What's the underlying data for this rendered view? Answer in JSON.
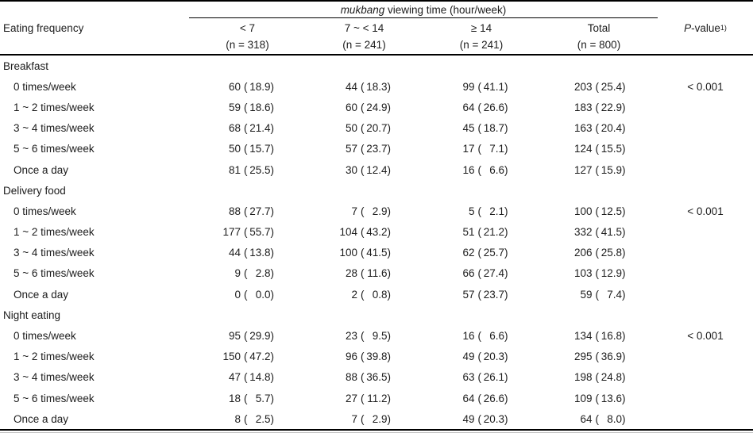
{
  "table": {
    "col1_header": "Eating frequency",
    "spanner": {
      "title_italic": "mukbang",
      "title_rest": " viewing time (hour/week)"
    },
    "columns": [
      {
        "label": "< 7",
        "n": "(n = 318)"
      },
      {
        "label": "7 ~ < 14",
        "n": "(n = 241)"
      },
      {
        "label": "≥ 14",
        "n": "(n = 241)"
      },
      {
        "label": "Total",
        "n": "(n = 800)"
      }
    ],
    "p_header": {
      "italic": "P",
      "rest": "-value",
      "sup": "1)"
    },
    "format": {
      "open": "(",
      "close": ")"
    },
    "sections": [
      {
        "label": "Breakfast",
        "p_value": "< 0.001",
        "rows": [
          {
            "label": "0 times/week",
            "cells": [
              {
                "n": "60",
                "p": "18.9"
              },
              {
                "n": "44",
                "p": "18.3"
              },
              {
                "n": "99",
                "p": "41.1"
              },
              {
                "n": "203",
                "p": "25.4"
              }
            ]
          },
          {
            "label": "1 ~ 2 times/week",
            "cells": [
              {
                "n": "59",
                "p": "18.6"
              },
              {
                "n": "60",
                "p": "24.9"
              },
              {
                "n": "64",
                "p": "26.6"
              },
              {
                "n": "183",
                "p": "22.9"
              }
            ]
          },
          {
            "label": "3 ~ 4 times/week",
            "cells": [
              {
                "n": "68",
                "p": "21.4"
              },
              {
                "n": "50",
                "p": "20.7"
              },
              {
                "n": "45",
                "p": "18.7"
              },
              {
                "n": "163",
                "p": "20.4"
              }
            ]
          },
          {
            "label": "5 ~ 6 times/week",
            "cells": [
              {
                "n": "50",
                "p": "15.7"
              },
              {
                "n": "57",
                "p": "23.7"
              },
              {
                "n": "17",
                "p": "7.1"
              },
              {
                "n": "124",
                "p": "15.5"
              }
            ]
          },
          {
            "label": "Once a day",
            "cells": [
              {
                "n": "81",
                "p": "25.5"
              },
              {
                "n": "30",
                "p": "12.4"
              },
              {
                "n": "16",
                "p": "6.6"
              },
              {
                "n": "127",
                "p": "15.9"
              }
            ]
          }
        ]
      },
      {
        "label": "Delivery food",
        "p_value": "< 0.001",
        "rows": [
          {
            "label": "0 times/week",
            "cells": [
              {
                "n": "88",
                "p": "27.7"
              },
              {
                "n": "7",
                "p": "2.9"
              },
              {
                "n": "5",
                "p": "2.1"
              },
              {
                "n": "100",
                "p": "12.5"
              }
            ]
          },
          {
            "label": "1 ~ 2 times/week",
            "cells": [
              {
                "n": "177",
                "p": "55.7"
              },
              {
                "n": "104",
                "p": "43.2"
              },
              {
                "n": "51",
                "p": "21.2"
              },
              {
                "n": "332",
                "p": "41.5"
              }
            ]
          },
          {
            "label": "3 ~ 4 times/week",
            "cells": [
              {
                "n": "44",
                "p": "13.8"
              },
              {
                "n": "100",
                "p": "41.5"
              },
              {
                "n": "62",
                "p": "25.7"
              },
              {
                "n": "206",
                "p": "25.8"
              }
            ]
          },
          {
            "label": "5 ~ 6 times/week",
            "cells": [
              {
                "n": "9",
                "p": "2.8"
              },
              {
                "n": "28",
                "p": "11.6"
              },
              {
                "n": "66",
                "p": "27.4"
              },
              {
                "n": "103",
                "p": "12.9"
              }
            ]
          },
          {
            "label": "Once a day",
            "cells": [
              {
                "n": "0",
                "p": "0.0"
              },
              {
                "n": "2",
                "p": "0.8"
              },
              {
                "n": "57",
                "p": "23.7"
              },
              {
                "n": "59",
                "p": "7.4"
              }
            ]
          }
        ]
      },
      {
        "label": "Night eating",
        "p_value": "< 0.001",
        "rows": [
          {
            "label": "0 times/week",
            "cells": [
              {
                "n": "95",
                "p": "29.9"
              },
              {
                "n": "23",
                "p": "9.5"
              },
              {
                "n": "16",
                "p": "6.6"
              },
              {
                "n": "134",
                "p": "16.8"
              }
            ]
          },
          {
            "label": "1 ~ 2 times/week",
            "cells": [
              {
                "n": "150",
                "p": "47.2"
              },
              {
                "n": "96",
                "p": "39.8"
              },
              {
                "n": "49",
                "p": "20.3"
              },
              {
                "n": "295",
                "p": "36.9"
              }
            ]
          },
          {
            "label": "3 ~ 4 times/week",
            "cells": [
              {
                "n": "47",
                "p": "14.8"
              },
              {
                "n": "88",
                "p": "36.5"
              },
              {
                "n": "63",
                "p": "26.1"
              },
              {
                "n": "198",
                "p": "24.8"
              }
            ]
          },
          {
            "label": "5 ~ 6 times/week",
            "cells": [
              {
                "n": "18",
                "p": "5.7"
              },
              {
                "n": "27",
                "p": "11.2"
              },
              {
                "n": "64",
                "p": "26.6"
              },
              {
                "n": "109",
                "p": "13.6"
              }
            ]
          },
          {
            "label": "Once a day",
            "cells": [
              {
                "n": "8",
                "p": "2.5"
              },
              {
                "n": "7",
                "p": "2.9"
              },
              {
                "n": "49",
                "p": "20.3"
              },
              {
                "n": "64",
                "p": "8.0"
              }
            ]
          }
        ]
      }
    ]
  }
}
